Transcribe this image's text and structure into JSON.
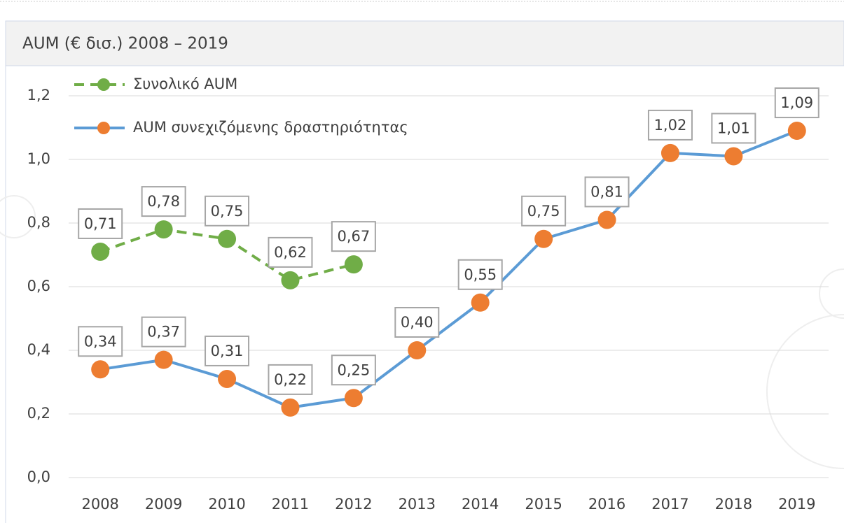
{
  "chart_data": {
    "type": "line",
    "title": "AUM (€ δισ.) 2008 – 2019",
    "categories": [
      "2008",
      "2009",
      "2010",
      "2011",
      "2012",
      "2013",
      "2014",
      "2015",
      "2016",
      "2017",
      "2018",
      "2019"
    ],
    "series": [
      {
        "name": "Συνολικό AUM",
        "color": "#70ad47",
        "dashed": true,
        "values": [
          0.71,
          0.78,
          0.75,
          0.62,
          0.67,
          null,
          null,
          null,
          null,
          null,
          null,
          null
        ],
        "value_labels": [
          "0,71",
          "0,78",
          "0,75",
          "0,62",
          "0,67",
          null,
          null,
          null,
          null,
          null,
          null,
          null
        ]
      },
      {
        "name": "AUM συνεχιζόμενης δραστηριότητας",
        "color": "#5b9bd5",
        "marker_color": "#ed7d31",
        "dashed": false,
        "values": [
          0.34,
          0.37,
          0.31,
          0.22,
          0.25,
          0.4,
          0.55,
          0.75,
          0.81,
          1.02,
          1.01,
          1.09
        ],
        "value_labels": [
          "0,34",
          "0,37",
          "0,31",
          "0,22",
          "0,25",
          "0,40",
          "0,55",
          "0,75",
          "0,81",
          "1,02",
          "1,01",
          "1,09"
        ]
      }
    ],
    "ylim": [
      0,
      1.2
    ],
    "yticks": [
      {
        "value": 0,
        "label": "0,0"
      },
      {
        "value": 0.2,
        "label": "0,2"
      },
      {
        "value": 0.4,
        "label": "0,4"
      },
      {
        "value": 0.6,
        "label": "0,6"
      },
      {
        "value": 0.8,
        "label": "0,8"
      },
      {
        "value": 1.0,
        "label": "1,0"
      },
      {
        "value": 1.2,
        "label": "1,2"
      }
    ],
    "grid": true,
    "legend": "upper left"
  }
}
